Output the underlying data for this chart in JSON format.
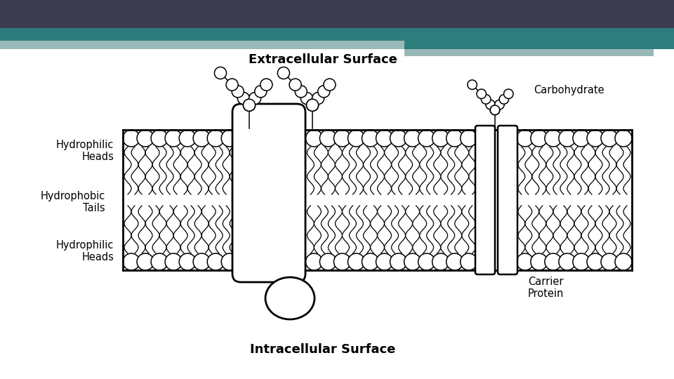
{
  "bg_top_color": "#3d3d52",
  "bg_teal_color": "#2e7d7d",
  "bg_light_teal": "#9ab8b8",
  "bg_white": "#ffffff",
  "title_extracellular": "Extracellular Surface",
  "title_intracellular": "Intracellular Surface",
  "label_carbohydrate": "Carbohydrate",
  "label_hydrophilic_heads": "Hydrophilic\nHeads",
  "label_hydrophobic_tails": "Hydrophobic\nTails",
  "label_hydrophilic_heads2": "Hydrophilic\nHeads",
  "label_carrier_protein": "Carrier\nProtein"
}
